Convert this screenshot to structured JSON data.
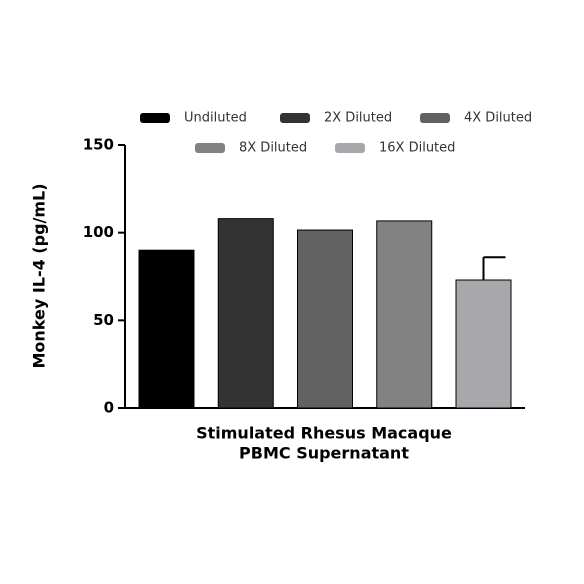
{
  "chart_data": {
    "type": "bar",
    "ylabel": "Monkey IL-4 (pg/mL)",
    "xlabel": [
      "Stimulated Rhesus Macaque",
      "PBMC Supernatant"
    ],
    "ylim": [
      0,
      150
    ],
    "yticks": [
      0,
      50,
      100,
      150
    ],
    "series": [
      {
        "name": "Undiluted",
        "color": "#000000",
        "values": [
          90
        ]
      },
      {
        "name": "2X Diluted",
        "color": "#333333",
        "values": [
          108
        ]
      },
      {
        "name": "4X Diluted",
        "color": "#626262",
        "values": [
          101.5
        ]
      },
      {
        "name": "8X Diluted",
        "color": "#828282",
        "values": [
          106.7
        ]
      },
      {
        "name": "16X Diluted",
        "color": "#a8a8ac",
        "values": [
          73
        ],
        "errors": [
          13
        ]
      }
    ]
  }
}
